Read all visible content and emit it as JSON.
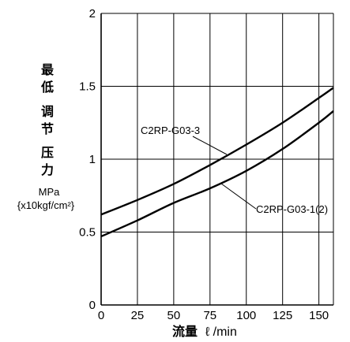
{
  "chart_data": {
    "type": "line",
    "title": "",
    "ylabel_chars": [
      "最",
      "低",
      "调",
      "节",
      "压",
      "力"
    ],
    "ylabel_unit": "MPa",
    "ylabel_unit2": "{x10kgf/cm²}",
    "xlabel_main": "流量",
    "xlabel_unit": "ℓ /min",
    "xlim": [
      0,
      160
    ],
    "ylim": [
      0,
      2
    ],
    "x_ticks": [
      "0",
      "25",
      "50",
      "75",
      "100",
      "125",
      "150"
    ],
    "x_tick_values": [
      0,
      25,
      50,
      75,
      100,
      125,
      150
    ],
    "y_ticks": [
      "0",
      "0.5",
      "1",
      "1.5",
      "2"
    ],
    "y_tick_values": [
      0,
      0.5,
      1,
      1.5,
      2
    ],
    "grid": true,
    "series": [
      {
        "name": "C2RP-G03-3",
        "x": [
          0,
          25,
          50,
          75,
          100,
          125,
          150,
          160
        ],
        "y": [
          0.62,
          0.72,
          0.83,
          0.96,
          1.1,
          1.25,
          1.42,
          1.49
        ]
      },
      {
        "name": "C2RP-G03-1(2)",
        "x": [
          0,
          25,
          50,
          75,
          100,
          125,
          150,
          160
        ],
        "y": [
          0.47,
          0.58,
          0.7,
          0.8,
          0.92,
          1.07,
          1.25,
          1.33
        ]
      }
    ]
  }
}
